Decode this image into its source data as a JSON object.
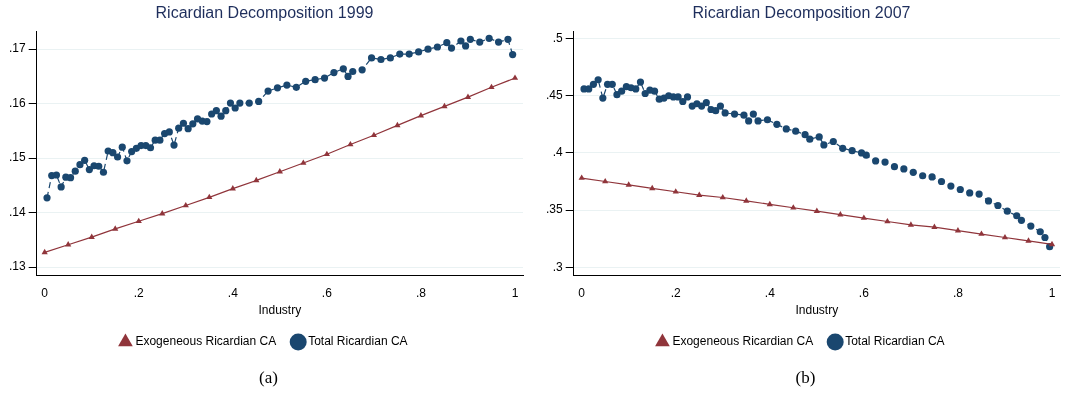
{
  "chart_data": [
    {
      "type": "line",
      "title": "Ricardian Decomposition 1999",
      "xlabel": "Industry",
      "annotations": [
        "(a)"
      ],
      "grid": "y",
      "legend": "bottom",
      "xlim": [
        -0.017,
        1.017
      ],
      "xticks": [
        {
          "value": 0,
          "label": "0"
        },
        {
          "value": 0.2,
          "label": ".2"
        },
        {
          "value": 0.4,
          "label": ".4"
        },
        {
          "value": 0.6,
          "label": ".6"
        },
        {
          "value": 0.8,
          "label": ".8"
        },
        {
          "value": 1,
          "label": "1"
        }
      ],
      "ylim": [
        0.1285,
        0.1733
      ],
      "yticks": [
        {
          "value": 0.13,
          "label": ".13"
        },
        {
          "value": 0.14,
          "label": ".14"
        },
        {
          "value": 0.15,
          "label": ".15"
        },
        {
          "value": 0.16,
          "label": ".16"
        },
        {
          "value": 0.17,
          "label": ".17"
        }
      ],
      "series": [
        {
          "name": "Total Ricardian CA",
          "color": "#1a476f",
          "marker": "circle",
          "line_style": "dashed",
          "x": [
            0.005,
            0.015,
            0.025,
            0.035,
            0.045,
            0.055,
            0.065,
            0.075,
            0.085,
            0.095,
            0.105,
            0.115,
            0.125,
            0.135,
            0.145,
            0.155,
            0.165,
            0.175,
            0.185,
            0.195,
            0.205,
            0.215,
            0.225,
            0.235,
            0.245,
            0.255,
            0.265,
            0.275,
            0.285,
            0.295,
            0.305,
            0.315,
            0.325,
            0.335,
            0.345,
            0.355,
            0.365,
            0.375,
            0.385,
            0.395,
            0.405,
            0.415,
            0.435,
            0.455,
            0.475,
            0.495,
            0.515,
            0.535,
            0.555,
            0.575,
            0.595,
            0.615,
            0.635,
            0.645,
            0.655,
            0.675,
            0.695,
            0.715,
            0.735,
            0.755,
            0.775,
            0.795,
            0.815,
            0.835,
            0.855,
            0.865,
            0.885,
            0.895,
            0.905,
            0.925,
            0.945,
            0.965,
            0.985,
            0.995
          ],
          "values": [
            0.1427,
            0.1468,
            0.1469,
            0.1447,
            0.1465,
            0.1464,
            0.1476,
            0.1488,
            0.1496,
            0.1479,
            0.1486,
            0.1485,
            0.1474,
            0.1513,
            0.151,
            0.1502,
            0.152,
            0.1495,
            0.1512,
            0.1518,
            0.1523,
            0.1523,
            0.1519,
            0.1533,
            0.1533,
            0.1545,
            0.1548,
            0.1524,
            0.1555,
            0.1564,
            0.1554,
            0.1563,
            0.1572,
            0.1568,
            0.1567,
            0.1581,
            0.1587,
            0.1577,
            0.1587,
            0.1601,
            0.1592,
            0.1601,
            0.1601,
            0.1604,
            0.1623,
            0.1629,
            0.1634,
            0.163,
            0.1641,
            0.1644,
            0.1647,
            0.1657,
            0.1664,
            0.165,
            0.1659,
            0.1662,
            0.1684,
            0.1681,
            0.1684,
            0.1691,
            0.1691,
            0.1695,
            0.17,
            0.1704,
            0.1712,
            0.1702,
            0.1715,
            0.1706,
            0.1718,
            0.1713,
            0.172,
            0.1713,
            0.1718,
            0.169
          ]
        },
        {
          "name": "Exogeneous Ricardian CA",
          "color": "#90353b",
          "marker": "triangle",
          "line_style": "solid",
          "x": [
            0,
            0.05,
            0.1,
            0.15,
            0.2,
            0.25,
            0.3,
            0.35,
            0.4,
            0.45,
            0.5,
            0.55,
            0.6,
            0.65,
            0.7,
            0.75,
            0.8,
            0.85,
            0.9,
            0.95,
            1
          ],
          "values": [
            0.1327,
            0.1341,
            0.1355,
            0.137,
            0.1384,
            0.1398,
            0.1413,
            0.1428,
            0.1444,
            0.1459,
            0.1475,
            0.1491,
            0.1507,
            0.1525,
            0.1542,
            0.156,
            0.1578,
            0.1595,
            0.1612,
            0.163,
            0.1647
          ]
        }
      ]
    },
    {
      "type": "line",
      "title": "Ricardian Decomposition 2007",
      "xlabel": "Industry",
      "annotations": [
        "(b)"
      ],
      "grid": "y",
      "legend": "bottom",
      "xlim": [
        -0.017,
        1.017
      ],
      "xticks": [
        {
          "value": 0,
          "label": "0"
        },
        {
          "value": 0.2,
          "label": ".2"
        },
        {
          "value": 0.4,
          "label": ".4"
        },
        {
          "value": 0.6,
          "label": ".6"
        },
        {
          "value": 0.8,
          "label": ".8"
        },
        {
          "value": 1,
          "label": "1"
        }
      ],
      "ylim": [
        0.293,
        0.5065
      ],
      "yticks": [
        {
          "value": 0.3,
          "label": ".3"
        },
        {
          "value": 0.35,
          "label": ".35"
        },
        {
          "value": 0.4,
          "label": ".4"
        },
        {
          "value": 0.45,
          "label": ".45"
        },
        {
          "value": 0.5,
          "label": ".5"
        }
      ],
      "series": [
        {
          "name": "Total Ricardian CA",
          "color": "#1a476f",
          "marker": "circle",
          "line_style": "dashed",
          "x": [
            0.005,
            0.015,
            0.025,
            0.035,
            0.045,
            0.055,
            0.065,
            0.075,
            0.085,
            0.095,
            0.105,
            0.115,
            0.125,
            0.135,
            0.145,
            0.155,
            0.165,
            0.175,
            0.185,
            0.195,
            0.205,
            0.215,
            0.225,
            0.235,
            0.245,
            0.255,
            0.265,
            0.275,
            0.285,
            0.295,
            0.305,
            0.325,
            0.345,
            0.355,
            0.365,
            0.375,
            0.395,
            0.415,
            0.435,
            0.455,
            0.475,
            0.485,
            0.505,
            0.515,
            0.535,
            0.555,
            0.575,
            0.595,
            0.605,
            0.625,
            0.645,
            0.665,
            0.685,
            0.705,
            0.725,
            0.745,
            0.765,
            0.785,
            0.805,
            0.825,
            0.845,
            0.865,
            0.885,
            0.905,
            0.925,
            0.935,
            0.955,
            0.975,
            0.985,
            0.995
          ],
          "values": [
            0.456,
            0.456,
            0.46,
            0.464,
            0.448,
            0.46,
            0.46,
            0.451,
            0.454,
            0.458,
            0.457,
            0.456,
            0.462,
            0.452,
            0.455,
            0.454,
            0.447,
            0.448,
            0.45,
            0.449,
            0.449,
            0.445,
            0.449,
            0.441,
            0.443,
            0.441,
            0.444,
            0.438,
            0.437,
            0.441,
            0.435,
            0.434,
            0.433,
            0.428,
            0.434,
            0.428,
            0.429,
            0.425,
            0.421,
            0.419,
            0.416,
            0.412,
            0.414,
            0.407,
            0.41,
            0.404,
            0.402,
            0.4,
            0.398,
            0.393,
            0.392,
            0.388,
            0.386,
            0.383,
            0.38,
            0.379,
            0.375,
            0.371,
            0.368,
            0.365,
            0.364,
            0.358,
            0.354,
            0.349,
            0.345,
            0.341,
            0.336,
            0.331,
            0.326,
            0.318
          ]
        },
        {
          "name": "Exogeneous Ricardian CA",
          "color": "#90353b",
          "marker": "triangle",
          "line_style": "solid",
          "x": [
            0,
            0.05,
            0.1,
            0.15,
            0.2,
            0.25,
            0.3,
            0.35,
            0.4,
            0.45,
            0.5,
            0.55,
            0.6,
            0.65,
            0.7,
            0.75,
            0.8,
            0.85,
            0.9,
            0.95,
            1
          ],
          "values": [
            0.378,
            0.375,
            0.372,
            0.369,
            0.366,
            0.363,
            0.361,
            0.358,
            0.355,
            0.352,
            0.349,
            0.346,
            0.343,
            0.34,
            0.337,
            0.335,
            0.332,
            0.329,
            0.326,
            0.323,
            0.32
          ]
        }
      ]
    }
  ]
}
